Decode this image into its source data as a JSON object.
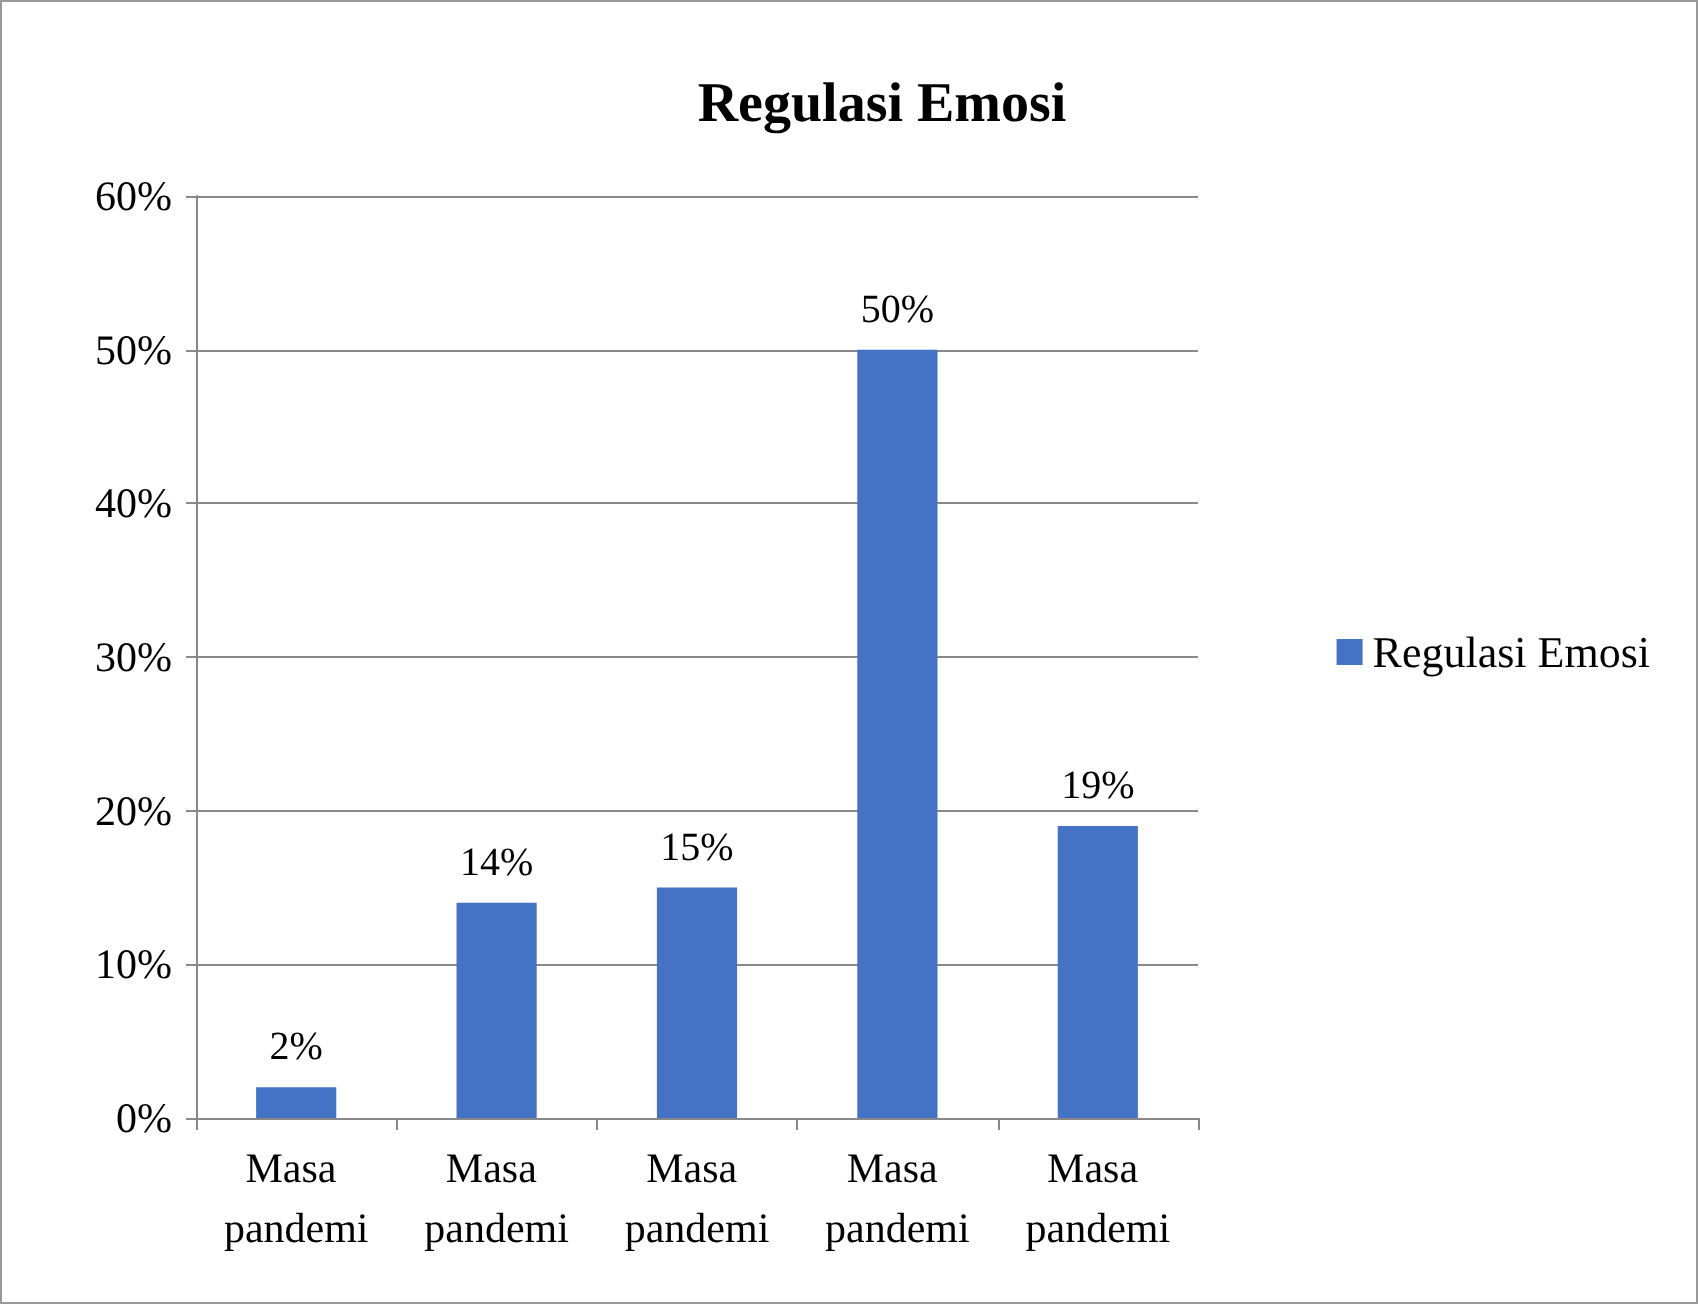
{
  "chart_data": {
    "type": "bar",
    "title": "Regulasi Emosi",
    "categories": [
      "Masa pandemi",
      "Masa pandemi",
      "Masa pandemi",
      "Masa pandemi",
      "Masa pandemi"
    ],
    "series": [
      {
        "name": "Regulasi Emosi",
        "color": "#4472c4",
        "values": [
          2,
          14,
          15,
          50,
          19
        ],
        "value_labels": [
          "2%",
          "14%",
          "15%",
          "50%",
          "19%"
        ]
      }
    ],
    "ylim": [
      0,
      60
    ],
    "yticks": [
      {
        "value": 0,
        "label": "0%"
      },
      {
        "value": 10,
        "label": "10%"
      },
      {
        "value": 20,
        "label": "20%"
      },
      {
        "value": 30,
        "label": "30%"
      },
      {
        "value": 40,
        "label": "40%"
      },
      {
        "value": 50,
        "label": "50%"
      },
      {
        "value": 60,
        "label": "60%"
      }
    ],
    "grid": "y",
    "legend": "right"
  }
}
